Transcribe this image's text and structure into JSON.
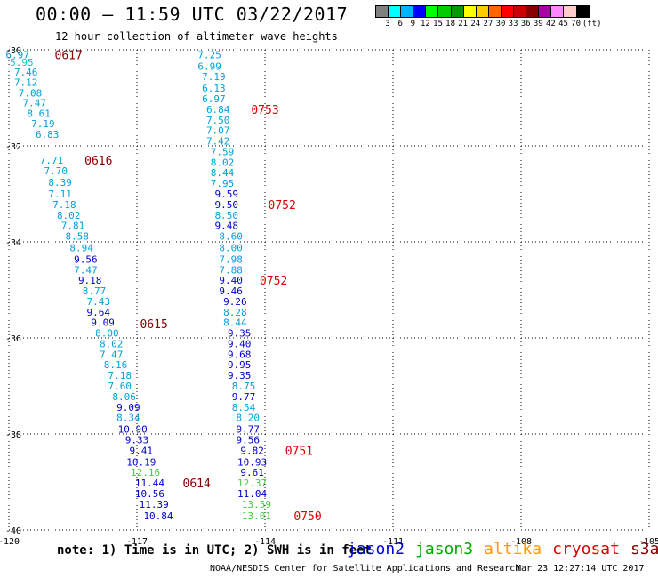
{
  "header": {
    "title": "00:00 – 11:59 UTC 03/22/2017",
    "subtitle": "12 hour collection of altimeter wave heights"
  },
  "legend": {
    "colors": [
      "#808080",
      "#00ffff",
      "#00b4ff",
      "#0000ff",
      "#00ff00",
      "#00cc00",
      "#009900",
      "#ffff00",
      "#ffcc00",
      "#ff6600",
      "#ff0000",
      "#cc0000",
      "#880000",
      "#aa00aa",
      "#ff88ff",
      "#ffcccc",
      "#000000"
    ],
    "labels": [
      "3",
      "6",
      "9",
      "12",
      "15",
      "18",
      "21",
      "24",
      "27",
      "30",
      "33",
      "36",
      "39",
      "42",
      "45",
      "70",
      "(ft)"
    ]
  },
  "footer": {
    "note": "note: 1) Time is in UTC; 2) SWH is in feet",
    "credit": "NOAA/NESDIS Center for Satellite Applications and Research",
    "timestamp": "Mar 23 12:27:14 UTC 2017",
    "satellites": [
      {
        "name": "jason2",
        "color": "#0000dd"
      },
      {
        "name": "jason3",
        "color": "#00aa00"
      },
      {
        "name": "altika",
        "color": "#ff9900"
      },
      {
        "name": "cryosat",
        "color": "#dd0000"
      },
      {
        "name": "s3a",
        "color": "#880000"
      }
    ]
  },
  "chart_data": {
    "type": "scatter",
    "x_axis": {
      "ticks": [
        -120,
        -117,
        -114,
        -111,
        -108,
        -105
      ],
      "tick_labels": [
        "-120",
        "-117",
        "-114",
        "-111",
        "-108",
        "-105"
      ]
    },
    "y_axis": {
      "ticks": [
        -30,
        -32,
        -34,
        -36,
        -38,
        -40
      ],
      "tick_labels": [
        "-30",
        "-32",
        "-34",
        "-36",
        "-38",
        "-40"
      ]
    },
    "xlim": [
      -120,
      -105
    ],
    "ylim": [
      -40,
      -30
    ],
    "grid": "dotted",
    "series": [
      {
        "name": "cryosat",
        "color_scale": "legend",
        "points": [
          {
            "lon": -119.8,
            "lat": -30.1,
            "swh": 6.97
          },
          {
            "lon": -119.7,
            "lat": -30.26,
            "swh": 5.95
          },
          {
            "lon": -119.6,
            "lat": -30.46,
            "swh": 7.46
          },
          {
            "lon": -119.6,
            "lat": -30.68,
            "swh": 7.12
          },
          {
            "lon": -119.5,
            "lat": -30.9,
            "swh": 7.08
          },
          {
            "lon": -119.4,
            "lat": -31.1,
            "swh": 7.47
          },
          {
            "lon": -119.3,
            "lat": -31.32,
            "swh": 8.61
          },
          {
            "lon": -119.2,
            "lat": -31.54,
            "swh": 7.19
          },
          {
            "lon": -119.1,
            "lat": -31.76,
            "swh": 6.83
          },
          {
            "lon": -119.0,
            "lat": -32.3,
            "swh": 7.71
          },
          {
            "lon": -118.9,
            "lat": -32.52,
            "swh": 7.7
          },
          {
            "lon": -118.8,
            "lat": -32.76,
            "swh": 8.39
          },
          {
            "lon": -118.8,
            "lat": -33.0,
            "swh": 7.11
          },
          {
            "lon": -118.7,
            "lat": -33.22,
            "swh": 7.18
          },
          {
            "lon": -118.6,
            "lat": -33.44,
            "swh": 8.02
          },
          {
            "lon": -118.5,
            "lat": -33.66,
            "swh": 7.81
          },
          {
            "lon": -118.4,
            "lat": -33.88,
            "swh": 8.58
          },
          {
            "lon": -118.3,
            "lat": -34.12,
            "swh": 8.94
          },
          {
            "lon": -118.2,
            "lat": -34.36,
            "swh": 9.56
          },
          {
            "lon": -118.2,
            "lat": -34.58,
            "swh": 7.47
          },
          {
            "lon": -118.1,
            "lat": -34.8,
            "swh": 9.18
          },
          {
            "lon": -118.0,
            "lat": -35.02,
            "swh": 8.77
          },
          {
            "lon": -117.9,
            "lat": -35.24,
            "swh": 7.43
          },
          {
            "lon": -117.9,
            "lat": -35.46,
            "swh": 9.64
          },
          {
            "lon": -117.8,
            "lat": -35.68,
            "swh": 9.09
          },
          {
            "lon": -117.7,
            "lat": -35.9,
            "swh": 8.0
          },
          {
            "lon": -117.6,
            "lat": -36.12,
            "swh": 8.02
          },
          {
            "lon": -117.6,
            "lat": -36.34,
            "swh": 7.47
          },
          {
            "lon": -117.5,
            "lat": -36.56,
            "swh": 8.16
          },
          {
            "lon": -117.4,
            "lat": -36.78,
            "swh": 7.18
          },
          {
            "lon": -117.4,
            "lat": -37.0,
            "swh": 7.6
          },
          {
            "lon": -117.3,
            "lat": -37.22,
            "swh": 8.06
          },
          {
            "lon": -117.2,
            "lat": -37.44,
            "swh": 9.09
          },
          {
            "lon": -117.2,
            "lat": -37.66,
            "swh": 8.34
          },
          {
            "lon": -117.1,
            "lat": -37.9,
            "swh": 10.9
          },
          {
            "lon": -117.0,
            "lat": -38.12,
            "swh": 9.33
          },
          {
            "lon": -116.9,
            "lat": -38.34,
            "swh": 9.41
          },
          {
            "lon": -116.9,
            "lat": -38.58,
            "swh": 10.19
          },
          {
            "lon": -116.8,
            "lat": -38.8,
            "swh": 12.16
          },
          {
            "lon": -116.7,
            "lat": -39.02,
            "swh": 11.44
          },
          {
            "lon": -116.7,
            "lat": -39.24,
            "swh": 10.56
          },
          {
            "lon": -116.6,
            "lat": -39.46,
            "swh": 11.39
          },
          {
            "lon": -116.5,
            "lat": -39.7,
            "swh": 10.84
          }
        ],
        "time_labels": [
          {
            "text": "0617",
            "lon": -118.6,
            "lat": -30.1
          },
          {
            "text": "0616",
            "lon": -117.9,
            "lat": -32.3
          },
          {
            "text": "0615",
            "lon": -116.6,
            "lat": -35.7
          },
          {
            "text": "0614",
            "lon": -115.6,
            "lat": -39.02
          }
        ]
      },
      {
        "name": "s3a",
        "color_scale": "legend",
        "points": [
          {
            "lon": -115.3,
            "lat": -30.1,
            "swh": 7.25
          },
          {
            "lon": -115.3,
            "lat": -30.34,
            "swh": 6.99
          },
          {
            "lon": -115.2,
            "lat": -30.56,
            "swh": 7.19
          },
          {
            "lon": -115.2,
            "lat": -30.8,
            "swh": 6.13
          },
          {
            "lon": -115.2,
            "lat": -31.02,
            "swh": 6.97
          },
          {
            "lon": -115.1,
            "lat": -31.24,
            "swh": 6.84
          },
          {
            "lon": -115.1,
            "lat": -31.46,
            "swh": 7.5
          },
          {
            "lon": -115.1,
            "lat": -31.68,
            "swh": 7.07
          },
          {
            "lon": -115.1,
            "lat": -31.9,
            "swh": 7.42
          },
          {
            "lon": -115.0,
            "lat": -32.12,
            "swh": 7.59
          },
          {
            "lon": -115.0,
            "lat": -32.34,
            "swh": 8.02
          },
          {
            "lon": -115.0,
            "lat": -32.56,
            "swh": 8.44
          },
          {
            "lon": -115.0,
            "lat": -32.78,
            "swh": 7.95
          },
          {
            "lon": -114.9,
            "lat": -33.0,
            "swh": 9.59
          },
          {
            "lon": -114.9,
            "lat": -33.22,
            "swh": 9.5
          },
          {
            "lon": -114.9,
            "lat": -33.44,
            "swh": 8.5
          },
          {
            "lon": -114.9,
            "lat": -33.66,
            "swh": 9.48
          },
          {
            "lon": -114.8,
            "lat": -33.88,
            "swh": 8.6
          },
          {
            "lon": -114.8,
            "lat": -34.12,
            "swh": 8.0
          },
          {
            "lon": -114.8,
            "lat": -34.36,
            "swh": 7.98
          },
          {
            "lon": -114.8,
            "lat": -34.58,
            "swh": 7.88
          },
          {
            "lon": -114.8,
            "lat": -34.8,
            "swh": 9.4
          },
          {
            "lon": -114.8,
            "lat": -35.02,
            "swh": 9.46
          },
          {
            "lon": -114.7,
            "lat": -35.24,
            "swh": 9.26
          },
          {
            "lon": -114.7,
            "lat": -35.46,
            "swh": 8.28
          },
          {
            "lon": -114.7,
            "lat": -35.68,
            "swh": 8.44
          },
          {
            "lon": -114.6,
            "lat": -35.9,
            "swh": 9.35
          },
          {
            "lon": -114.6,
            "lat": -36.12,
            "swh": 9.4
          },
          {
            "lon": -114.6,
            "lat": -36.34,
            "swh": 9.68
          },
          {
            "lon": -114.6,
            "lat": -36.56,
            "swh": 9.95
          },
          {
            "lon": -114.6,
            "lat": -36.78,
            "swh": 9.35
          },
          {
            "lon": -114.5,
            "lat": -37.0,
            "swh": 8.75
          },
          {
            "lon": -114.5,
            "lat": -37.22,
            "swh": 9.77
          },
          {
            "lon": -114.5,
            "lat": -37.44,
            "swh": 8.54
          },
          {
            "lon": -114.4,
            "lat": -37.66,
            "swh": 8.2
          },
          {
            "lon": -114.4,
            "lat": -37.9,
            "swh": 9.77
          },
          {
            "lon": -114.4,
            "lat": -38.12,
            "swh": 9.56
          },
          {
            "lon": -114.3,
            "lat": -38.34,
            "swh": 9.82
          },
          {
            "lon": -114.3,
            "lat": -38.58,
            "swh": 10.93
          },
          {
            "lon": -114.3,
            "lat": -38.8,
            "swh": 9.61
          },
          {
            "lon": -114.3,
            "lat": -39.02,
            "swh": 12.37
          },
          {
            "lon": -114.3,
            "lat": -39.24,
            "swh": 11.04
          },
          {
            "lon": -114.2,
            "lat": -39.46,
            "swh": 13.59
          },
          {
            "lon": -114.2,
            "lat": -39.7,
            "swh": 13.01
          }
        ],
        "time_labels": [
          {
            "text": "0753",
            "lon": -114.0,
            "lat": -31.24
          },
          {
            "text": "0752",
            "lon": -113.6,
            "lat": -33.22
          },
          {
            "text": "0752",
            "lon": -113.8,
            "lat": -34.8
          },
          {
            "text": "0751",
            "lon": -113.2,
            "lat": -38.34
          },
          {
            "text": "0750",
            "lon": -113.0,
            "lat": -39.7
          }
        ]
      }
    ]
  }
}
